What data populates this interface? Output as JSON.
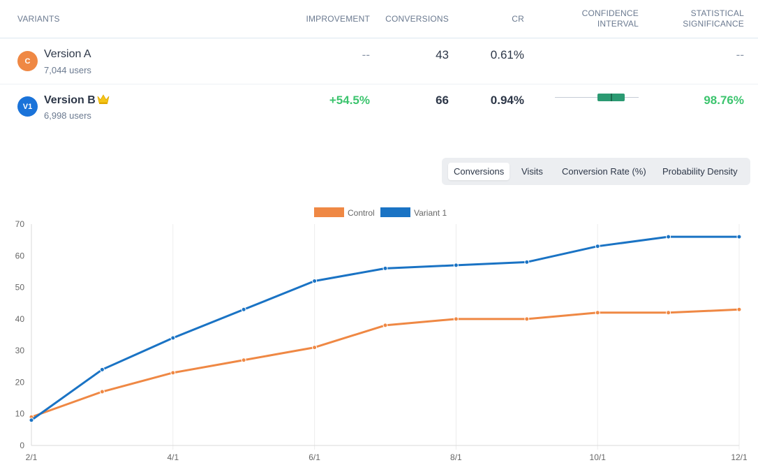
{
  "table": {
    "headers": {
      "variants": "VARIANTS",
      "improvement": "IMPROVEMENT",
      "conversions": "CONVERSIONS",
      "cr": "CR",
      "confidence_line1": "CONFIDENCE",
      "confidence_line2": "INTERVAL",
      "significance_line1": "STATISTICAL",
      "significance_line2": "SIGNIFICANCE"
    },
    "rows": [
      {
        "badge": "C",
        "badge_color": "#ef8844",
        "name": "Version A",
        "users": "7,044 users",
        "improvement": "--",
        "conversions": "43",
        "cr": "0.61%",
        "significance": "--"
      },
      {
        "badge": "V1",
        "badge_color": "#1a73d9",
        "name": "Version B",
        "winner_icon": "crown-icon",
        "users": "6,998 users",
        "improvement": "+54.5%",
        "conversions": "66",
        "cr": "0.94%",
        "significance": "98.76%"
      }
    ]
  },
  "tabs": [
    {
      "label": "Conversions",
      "active": true
    },
    {
      "label": "Visits",
      "active": false
    },
    {
      "label": "Conversion Rate (%)",
      "active": false
    },
    {
      "label": "Probability Density",
      "active": false
    }
  ],
  "colors": {
    "control": "#ef8844",
    "variant": "#1a73c4",
    "positive": "#3cc46e",
    "ci_box": "#2b9a72"
  },
  "chart_data": {
    "type": "line",
    "x": [
      "2/1",
      "3/1",
      "4/1",
      "5/1",
      "6/1",
      "7/1",
      "8/1",
      "9/1",
      "10/1",
      "11/1",
      "12/1"
    ],
    "x_tick_labels": [
      "2/1",
      "4/1",
      "6/1",
      "8/1",
      "10/1",
      "12/1"
    ],
    "series": [
      {
        "name": "Control",
        "color": "#ef8844",
        "values": [
          9,
          17,
          23,
          27,
          31,
          38,
          40,
          40,
          42,
          42,
          43
        ]
      },
      {
        "name": "Variant 1",
        "color": "#1a73c4",
        "values": [
          8,
          24,
          34,
          43,
          52,
          56,
          57,
          58,
          63,
          66,
          66
        ]
      }
    ],
    "ylim": [
      0,
      70
    ],
    "y_ticks": [
      0,
      10,
      20,
      30,
      40,
      50,
      60,
      70
    ],
    "grid": "vertical",
    "legend": "top-center"
  }
}
